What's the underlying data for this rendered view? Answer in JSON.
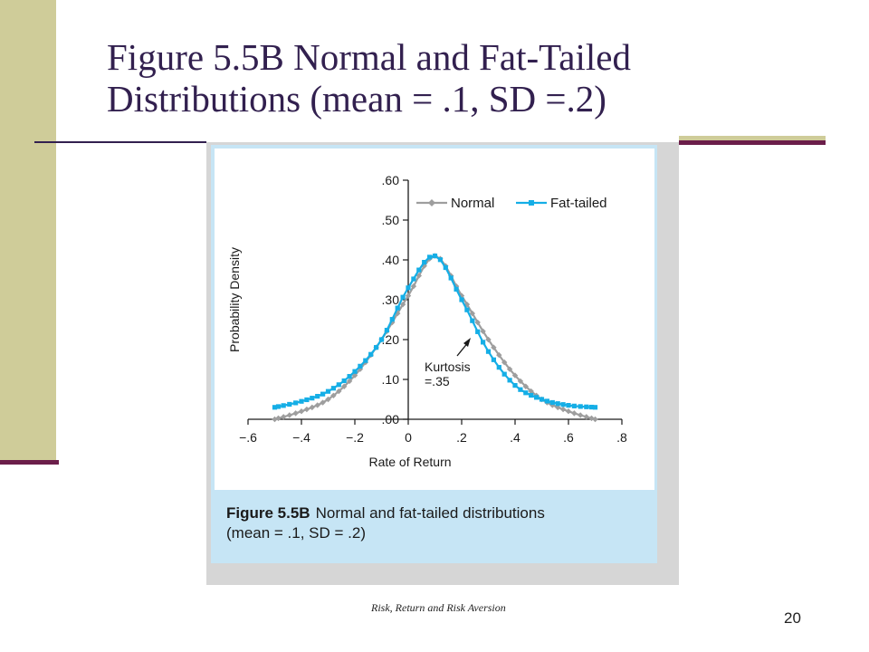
{
  "slide": {
    "title_line1": "Figure 5.5B Normal and Fat-Tailed",
    "title_line2": "Distributions (mean = .1, SD =.2)",
    "footer": "Risk, Return and Risk Aversion",
    "page_number": "20"
  },
  "figure": {
    "caption_label": "Figure 5.5B",
    "caption_text_line1": "Normal and fat-tailed distributions",
    "caption_text_line2": "(mean = .1, SD = .2)"
  },
  "chart_data": {
    "type": "line",
    "xlabel": "Rate of Return",
    "ylabel": "Probability Density",
    "xlim": [
      -0.6,
      0.8
    ],
    "ylim": [
      0,
      0.6
    ],
    "x_tick_labels": [
      "−.6",
      "−.4",
      "−.2",
      "0",
      ".2",
      ".4",
      ".6",
      ".8"
    ],
    "y_tick_labels": [
      ".00",
      ".10",
      ".20",
      ".30",
      ".40",
      ".50",
      ".60"
    ],
    "legend_position": "top-right",
    "annotation": {
      "line1": "Kurtosis",
      "line2": "=.35"
    },
    "x": [
      -0.5,
      -0.4,
      -0.3,
      -0.2,
      -0.1,
      0.0,
      0.1,
      0.2,
      0.3,
      0.4,
      0.5,
      0.6,
      0.7
    ],
    "series": [
      {
        "name": "Normal",
        "color": "#9e9e9e",
        "marker": "diamond",
        "values": [
          0.0,
          0.02,
          0.05,
          0.11,
          0.2,
          0.31,
          0.41,
          0.31,
          0.2,
          0.11,
          0.05,
          0.02,
          0.0
        ]
      },
      {
        "name": "Fat-tailed",
        "color": "#15aee6",
        "marker": "square",
        "values": [
          0.03,
          0.045,
          0.07,
          0.12,
          0.2,
          0.33,
          0.41,
          0.3,
          0.17,
          0.085,
          0.05,
          0.035,
          0.03
        ]
      }
    ]
  }
}
